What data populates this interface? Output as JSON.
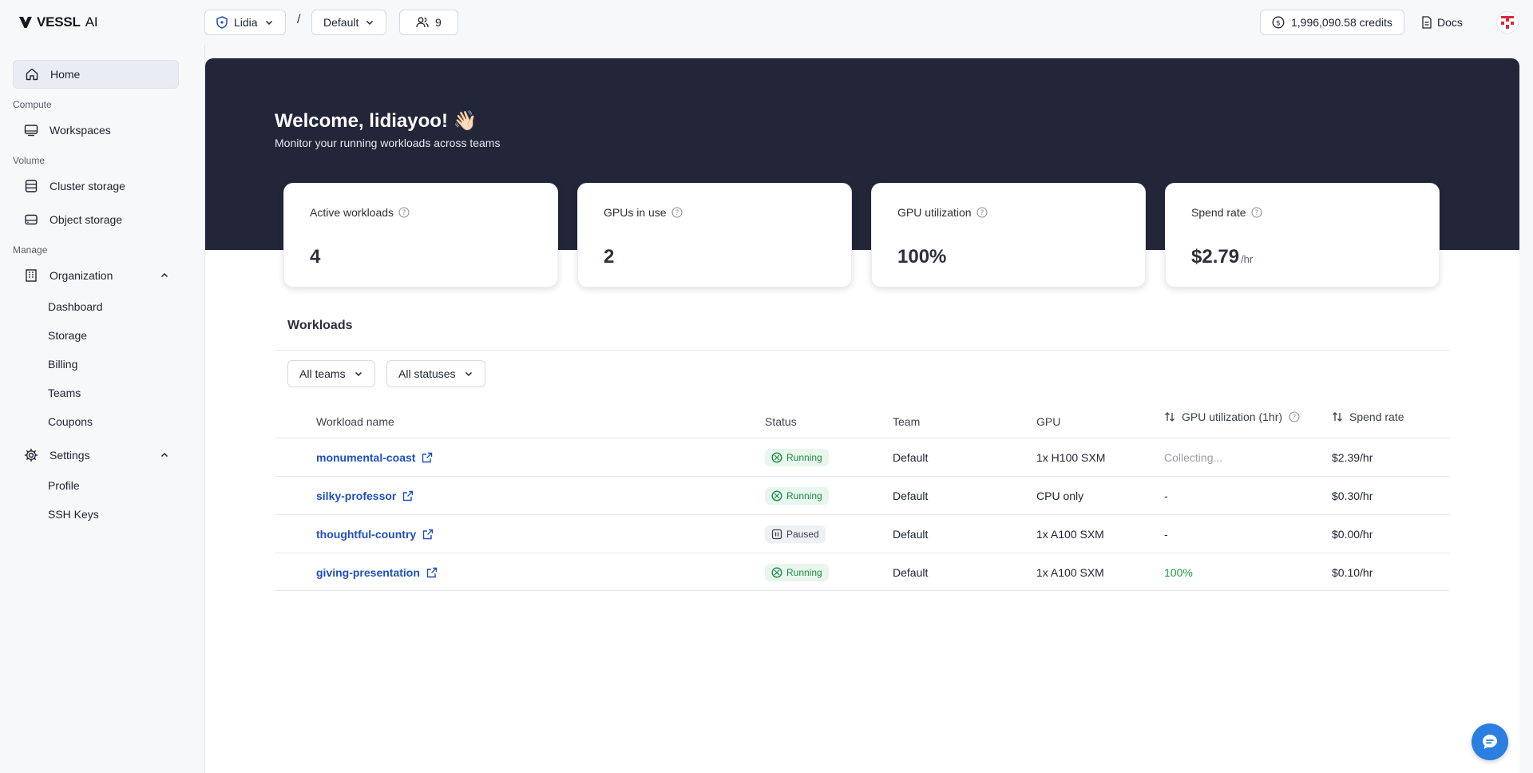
{
  "app": {
    "logo_brand": "VESSL",
    "logo_suffix": "AI"
  },
  "topbar": {
    "org_name": "Lidia",
    "separator": "/",
    "team_name": "Default",
    "members_count": "9",
    "credits": "1,996,090.58 credits",
    "docs_label": "Docs"
  },
  "sidebar": {
    "home": "Home",
    "section_compute": "Compute",
    "workspaces": "Workspaces",
    "section_volume": "Volume",
    "cluster_storage": "Cluster storage",
    "object_storage": "Object storage",
    "section_manage": "Manage",
    "organization": "Organization",
    "org_items": [
      "Dashboard",
      "Storage",
      "Billing",
      "Teams",
      "Coupons"
    ],
    "settings": "Settings",
    "settings_items": [
      "Profile",
      "SSH Keys"
    ]
  },
  "hero": {
    "welcome": "Welcome, lidiayoo! 👋🏻",
    "subtitle": "Monitor your running workloads across teams"
  },
  "stats": [
    {
      "label": "Active workloads",
      "value": "4",
      "unit": ""
    },
    {
      "label": "GPUs in use",
      "value": "2",
      "unit": ""
    },
    {
      "label": "GPU utilization",
      "value": "100%",
      "unit": ""
    },
    {
      "label": "Spend rate",
      "value": "$2.79",
      "unit": "/hr"
    }
  ],
  "workloads": {
    "title": "Workloads",
    "filter_teams": "All teams",
    "filter_statuses": "All statuses",
    "columns": {
      "name": "Workload name",
      "status": "Status",
      "team": "Team",
      "gpu": "GPU",
      "gpu_util": "GPU utilization (1hr)",
      "spend": "Spend rate"
    },
    "rows": [
      {
        "name": "monumental-coast",
        "status": "Running",
        "team": "Default",
        "gpu": "1x H100 SXM",
        "util": "Collecting...",
        "spend": "$2.39/hr"
      },
      {
        "name": "silky-professor",
        "status": "Running",
        "team": "Default",
        "gpu": "CPU only",
        "util": "-",
        "spend": "$0.30/hr"
      },
      {
        "name": "thoughtful-country",
        "status": "Paused",
        "team": "Default",
        "gpu": "1x A100 SXM",
        "util": "-",
        "spend": "$0.00/hr"
      },
      {
        "name": "giving-presentation",
        "status": "Running",
        "team": "Default",
        "gpu": "1x A100 SXM",
        "util": "100%",
        "spend": "$0.10/hr"
      }
    ]
  },
  "colors": {
    "hero_bg": "#232639",
    "link": "#1f4fbf",
    "running": "#1e8a44",
    "chat": "#2a7fe0"
  }
}
